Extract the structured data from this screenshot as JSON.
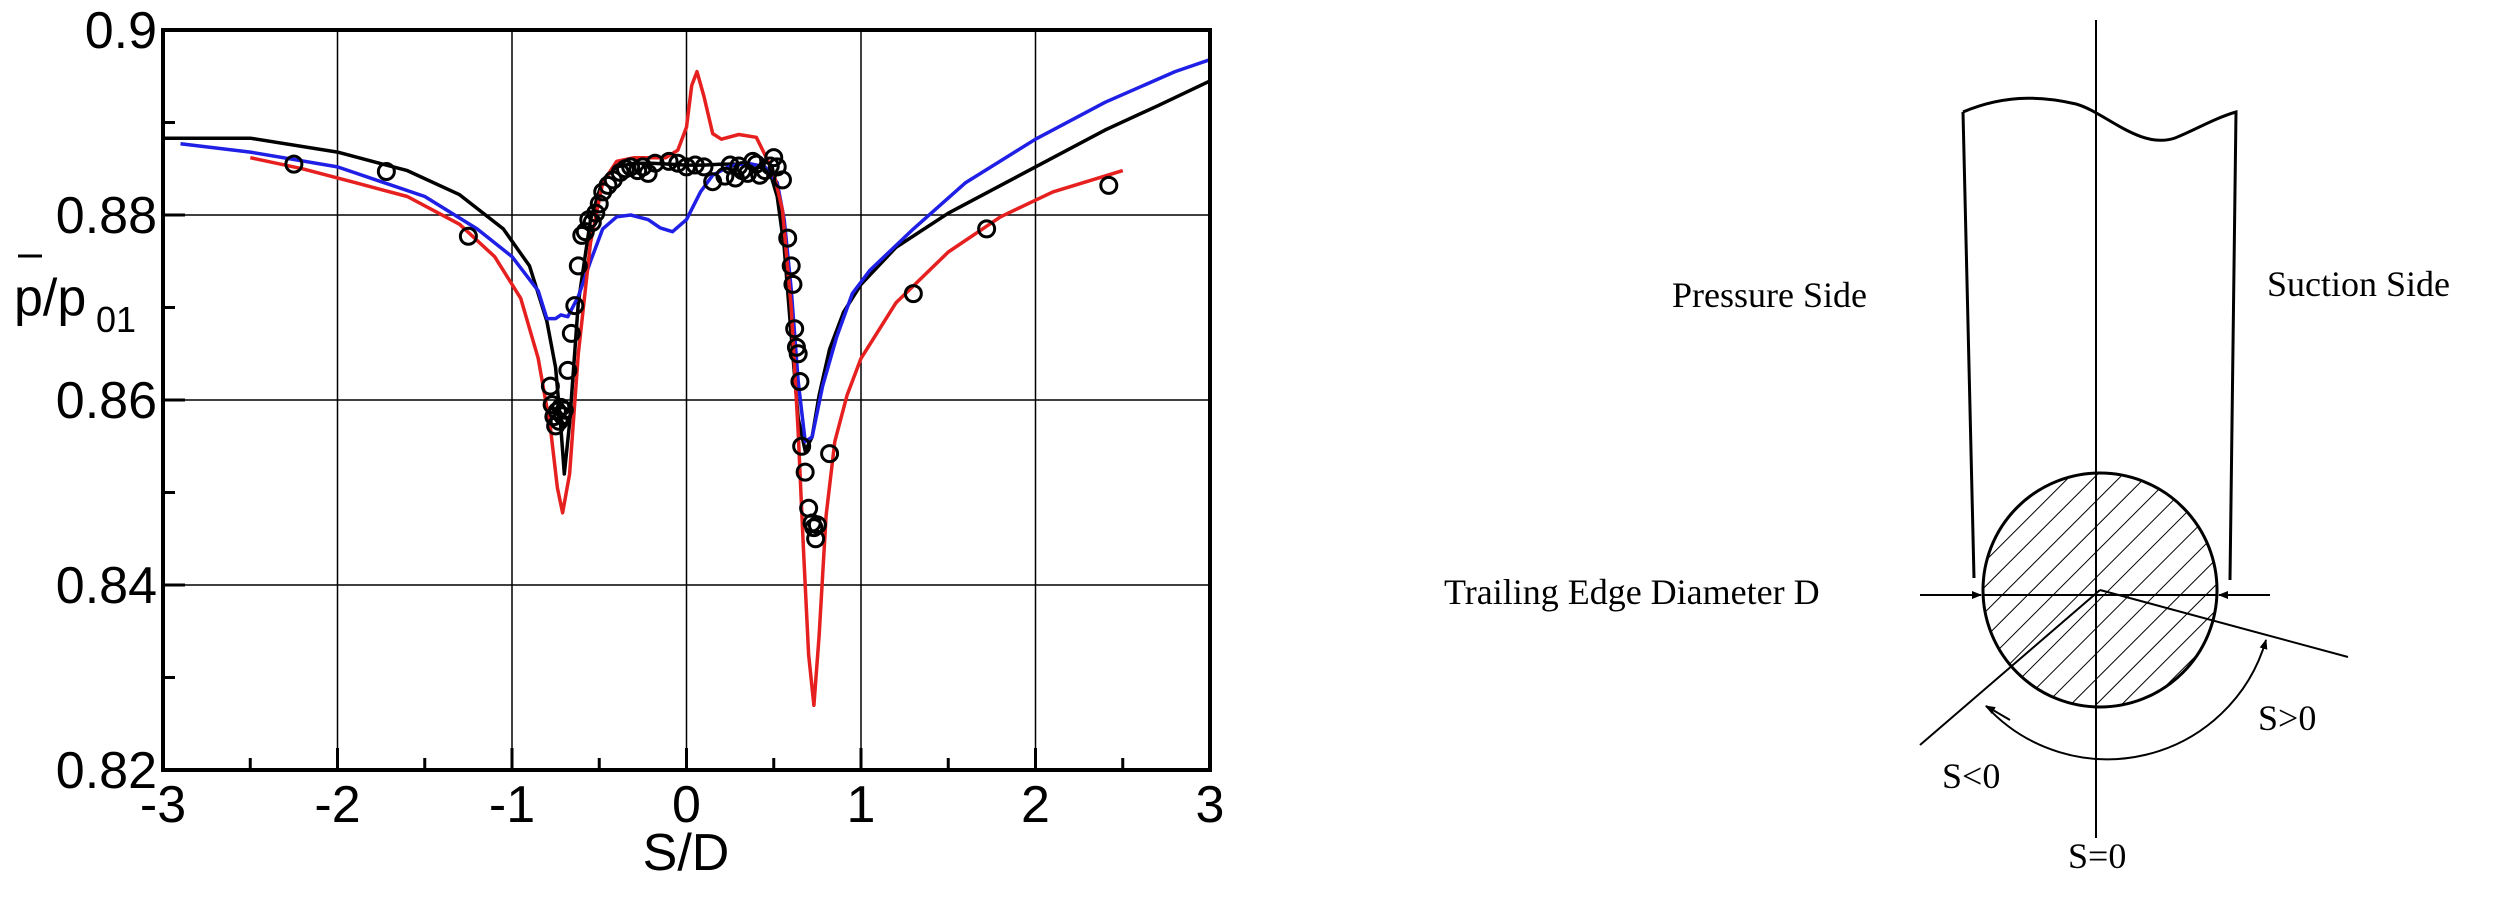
{
  "chart_data": {
    "type": "line",
    "xlabel": "S/D",
    "ylabel_main": "p/p",
    "ylabel_sub": "01",
    "xlim": [
      -3,
      3
    ],
    "ylim": [
      0.82,
      0.9
    ],
    "xticks": [
      -3,
      -2,
      -1,
      0,
      1,
      2,
      3
    ],
    "xtick_labels": [
      "-3",
      "-2",
      "-1",
      "0",
      "1",
      "2",
      "3"
    ],
    "yticks": [
      0.82,
      0.84,
      0.86,
      0.88,
      0.9
    ],
    "ytick_labels": [
      "0.82",
      "0.84",
      "0.86",
      "0.88",
      "0.9"
    ],
    "grid": true,
    "colors": {
      "black": "#000000",
      "blue": "#1f1fe6",
      "red": "#e61f1f"
    },
    "series": [
      {
        "color": "black",
        "x": [
          -3.0,
          -2.5,
          -2.0,
          -1.6,
          -1.3,
          -1.05,
          -0.9,
          -0.8,
          -0.75,
          -0.72,
          -0.7,
          -0.67,
          -0.62,
          -0.55,
          -0.48,
          -0.4,
          -0.3,
          -0.2,
          -0.1,
          0.0,
          0.1,
          0.2,
          0.3,
          0.4,
          0.48,
          0.52,
          0.56,
          0.6,
          0.64,
          0.68,
          0.72,
          0.76,
          0.82,
          0.9,
          1.0,
          1.2,
          1.5,
          1.8,
          2.1,
          2.4,
          2.7,
          3.0
        ],
        "y": [
          0.8883,
          0.8883,
          0.8868,
          0.8848,
          0.8822,
          0.8785,
          0.8745,
          0.8685,
          0.8635,
          0.857,
          0.852,
          0.8575,
          0.8705,
          0.8795,
          0.8838,
          0.8852,
          0.8856,
          0.8856,
          0.8855,
          0.8854,
          0.8854,
          0.8855,
          0.8855,
          0.8854,
          0.8845,
          0.882,
          0.8765,
          0.867,
          0.858,
          0.8545,
          0.856,
          0.8605,
          0.8655,
          0.8695,
          0.8725,
          0.8765,
          0.8802,
          0.8832,
          0.8862,
          0.8892,
          0.8918,
          0.8945
        ]
      },
      {
        "color": "blue",
        "x": [
          -2.9,
          -2.5,
          -2.0,
          -1.5,
          -1.2,
          -1.0,
          -0.85,
          -0.8,
          -0.75,
          -0.72,
          -0.68,
          -0.62,
          -0.55,
          -0.48,
          -0.4,
          -0.32,
          -0.22,
          -0.15,
          -0.08,
          0.0,
          0.08,
          0.15,
          0.25,
          0.35,
          0.45,
          0.52,
          0.56,
          0.6,
          0.64,
          0.68,
          0.72,
          0.78,
          0.86,
          0.95,
          1.05,
          1.3,
          1.6,
          2.0,
          2.4,
          2.8,
          3.0
        ],
        "y": [
          0.8877,
          0.8868,
          0.8852,
          0.882,
          0.8785,
          0.8755,
          0.8718,
          0.8688,
          0.8688,
          0.8692,
          0.869,
          0.8712,
          0.875,
          0.8785,
          0.8798,
          0.88,
          0.8795,
          0.8786,
          0.8782,
          0.8795,
          0.8825,
          0.8843,
          0.8853,
          0.8856,
          0.8852,
          0.8835,
          0.8795,
          0.872,
          0.862,
          0.8555,
          0.856,
          0.8615,
          0.8668,
          0.8715,
          0.874,
          0.8785,
          0.8835,
          0.8882,
          0.8922,
          0.8955,
          0.8968
        ]
      },
      {
        "color": "red",
        "x": [
          -2.5,
          -2.2,
          -1.9,
          -1.6,
          -1.3,
          -1.1,
          -0.95,
          -0.85,
          -0.78,
          -0.74,
          -0.71,
          -0.67,
          -0.62,
          -0.55,
          -0.48,
          -0.4,
          -0.3,
          -0.2,
          -0.12,
          -0.05,
          0.0,
          0.03,
          0.06,
          0.1,
          0.15,
          0.2,
          0.3,
          0.4,
          0.45,
          0.5,
          0.55,
          0.6,
          0.64,
          0.67,
          0.7,
          0.73,
          0.76,
          0.8,
          0.85,
          0.92,
          1.0,
          1.2,
          1.5,
          1.8,
          2.1,
          2.5
        ],
        "y": [
          0.8862,
          0.885,
          0.8835,
          0.882,
          0.879,
          0.8755,
          0.871,
          0.8645,
          0.857,
          0.8505,
          0.8478,
          0.852,
          0.865,
          0.877,
          0.8835,
          0.8858,
          0.8862,
          0.8862,
          0.8862,
          0.887,
          0.8895,
          0.894,
          0.8955,
          0.8928,
          0.8888,
          0.8882,
          0.8887,
          0.8884,
          0.8865,
          0.8845,
          0.8805,
          0.87,
          0.8565,
          0.844,
          0.8325,
          0.827,
          0.8345,
          0.8475,
          0.8555,
          0.8605,
          0.8645,
          0.8705,
          0.876,
          0.8798,
          0.8825,
          0.8848
        ]
      },
      {
        "color": "black",
        "marker": "circle",
        "x": [
          -2.25,
          -1.72,
          -1.25,
          -0.78,
          -0.77,
          -0.76,
          -0.75,
          -0.74,
          -0.73,
          -0.72,
          -0.71,
          -0.7,
          -0.68,
          -0.66,
          -0.64,
          -0.62,
          -0.6,
          -0.58,
          -0.56,
          -0.54,
          -0.52,
          -0.5,
          -0.48,
          -0.45,
          -0.42,
          -0.38,
          -0.35,
          -0.32,
          -0.28,
          -0.25,
          -0.22,
          -0.18,
          -0.1,
          -0.05,
          0.0,
          0.05,
          0.1,
          0.15,
          0.22,
          0.25,
          0.28,
          0.3,
          0.32,
          0.35,
          0.38,
          0.4,
          0.42,
          0.45,
          0.48,
          0.5,
          0.52,
          0.55,
          0.58,
          0.6,
          0.61,
          0.62,
          0.63,
          0.64,
          0.65,
          0.66,
          0.68,
          0.7,
          0.72,
          0.73,
          0.74,
          0.75,
          0.82,
          1.3,
          1.72,
          2.42
        ],
        "y": [
          0.8855,
          0.8847,
          0.8777,
          0.8615,
          0.8595,
          0.8582,
          0.8572,
          0.8588,
          0.8577,
          0.8592,
          0.8583,
          0.8589,
          0.8632,
          0.8672,
          0.8702,
          0.8745,
          0.8778,
          0.8782,
          0.8795,
          0.8792,
          0.8802,
          0.8812,
          0.8825,
          0.8832,
          0.8838,
          0.8846,
          0.885,
          0.8852,
          0.8848,
          0.8852,
          0.8845,
          0.8856,
          0.8858,
          0.8856,
          0.8852,
          0.8854,
          0.8852,
          0.8836,
          0.8842,
          0.8854,
          0.884,
          0.8853,
          0.8848,
          0.8845,
          0.8858,
          0.8855,
          0.8843,
          0.8848,
          0.8853,
          0.8862,
          0.8852,
          0.8838,
          0.8775,
          0.8745,
          0.8725,
          0.8677,
          0.8657,
          0.865,
          0.862,
          0.855,
          0.8522,
          0.8483,
          0.8467,
          0.8462,
          0.845,
          0.8465,
          0.8542,
          0.8715,
          0.8785,
          0.8832
        ]
      }
    ]
  },
  "diagram": {
    "pressure_side": "Pressure Side",
    "suction_side": "Suction Side",
    "te_diameter": "Trailing Edge Diameter D",
    "s_pos": "S>0",
    "s_neg": "S<0",
    "s_zero": "S=0"
  }
}
